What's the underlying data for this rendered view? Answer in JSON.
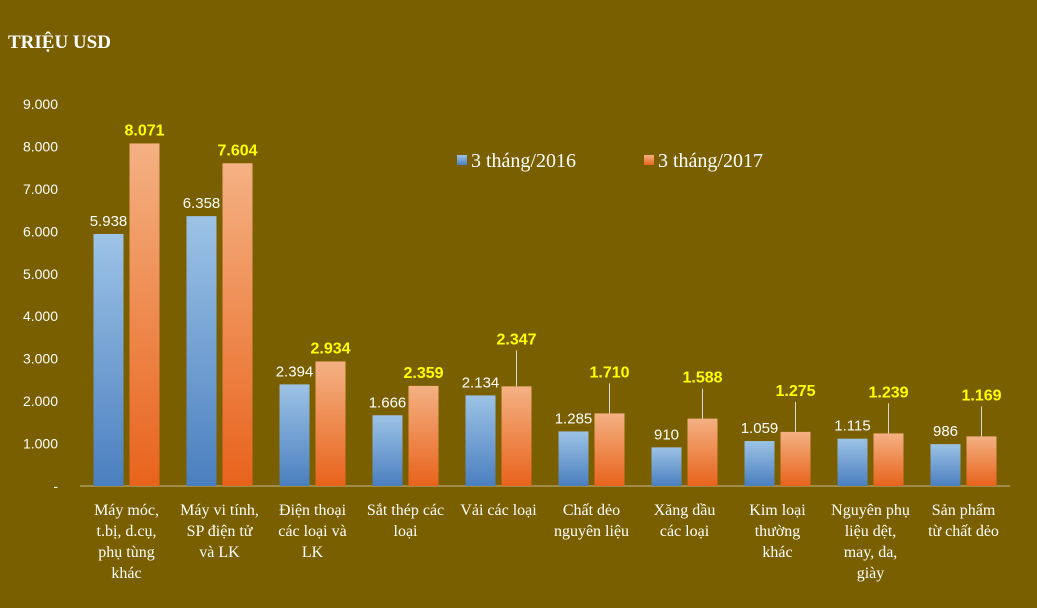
{
  "chart_data": {
    "type": "bar",
    "ylabel": "TRIỆU USD",
    "ylim": [
      0,
      9000
    ],
    "y_ticks": [
      "-",
      "1.000",
      "2.000",
      "3.000",
      "4.000",
      "5.000",
      "6.000",
      "7.000",
      "8.000",
      "9.000"
    ],
    "categories": [
      [
        "Máy móc,",
        "t.bị, d.cụ,",
        "phụ tùng",
        "khác"
      ],
      [
        "Máy vi tính,",
        "SP điện tử",
        "và LK"
      ],
      [
        "Điện thoại",
        "các loại và",
        "LK"
      ],
      [
        "Sắt thép các",
        "loại"
      ],
      [
        "Vải các loại"
      ],
      [
        "Chất dẻo",
        "nguyên liệu"
      ],
      [
        "Xăng dầu",
        "các loại"
      ],
      [
        "Kim loại",
        "thường",
        "khác"
      ],
      [
        "Nguyên phụ",
        "liệu dệt,",
        "may, da,",
        "giày"
      ],
      [
        "Sản phẩm",
        "từ chất dẻo"
      ]
    ],
    "series": [
      {
        "name": "3 tháng/2016",
        "values": [
          5938,
          6358,
          2394,
          1666,
          2134,
          1285,
          910,
          1059,
          1115,
          986
        ],
        "labels": [
          "5.938",
          "6.358",
          "2.394",
          "1.666",
          "2.134",
          "1.285",
          "910",
          "1.059",
          "1.115",
          "986"
        ],
        "color": "#5b9bd5"
      },
      {
        "name": "3 tháng/2017",
        "values": [
          8071,
          7604,
          2934,
          2359,
          2347,
          1710,
          1588,
          1275,
          1239,
          1169
        ],
        "labels": [
          "8.071",
          "7.604",
          "2.934",
          "2.359",
          "2.347",
          "1.710",
          "1.588",
          "1.275",
          "1.239",
          "1.169"
        ],
        "color": "#ed7d31"
      }
    ],
    "legend": "top-right",
    "grid": false,
    "label_colors": {
      "series_2016": "#ffffff",
      "series_2017": "#ffff00"
    },
    "background": "#7a5f00"
  }
}
